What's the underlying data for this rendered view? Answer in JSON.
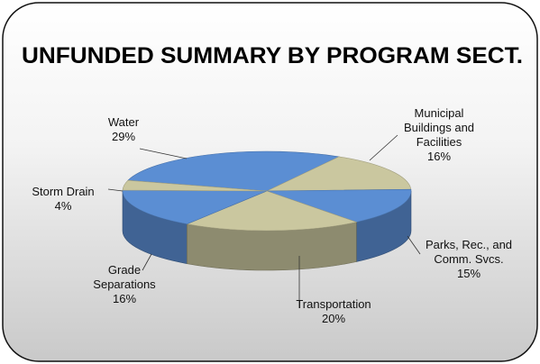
{
  "chart_data": {
    "type": "pie",
    "title": "UNFUNDED SUMMARY BY PROGRAM SECT.",
    "categories": [
      "Water",
      "Municipal Buildings and Facilities",
      "Parks, Rec., and Comm. Svcs.",
      "Transportation",
      "Grade Separations",
      "Storm Drain"
    ],
    "values": [
      29,
      16,
      15,
      20,
      16,
      4
    ],
    "value_labels": [
      "29%",
      "16%",
      "15%",
      "20%",
      "16%",
      "4%"
    ],
    "colors": [
      "#5b8ed3",
      "#cac79f",
      "#5b8ed3",
      "#cac79f",
      "#5b8ed3",
      "#cac79f"
    ]
  }
}
